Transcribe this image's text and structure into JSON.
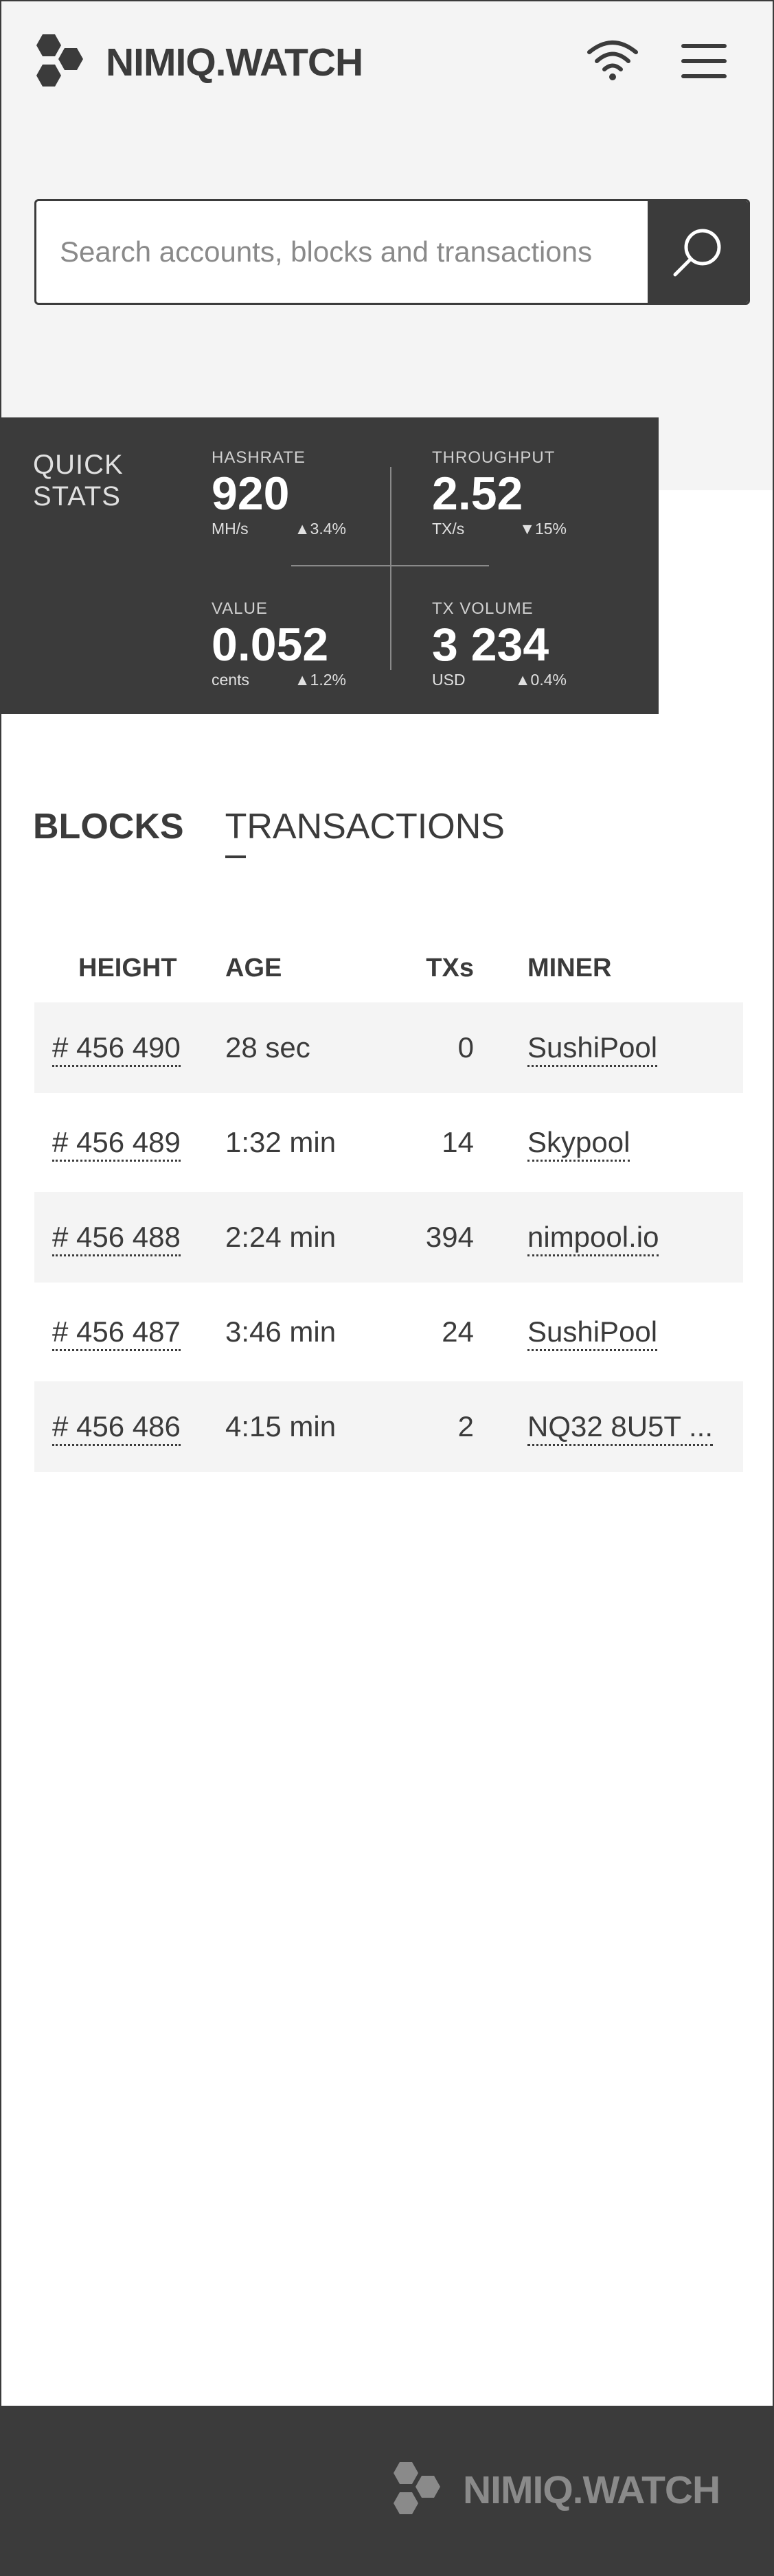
{
  "header": {
    "logo_text": "NIMIQ.WATCH"
  },
  "search": {
    "placeholder": "Search accounts, blocks and transactions"
  },
  "quick_stats": {
    "title": "QUICK\nSTATS",
    "hashrate": {
      "label": "HASHRATE",
      "value": "920",
      "unit": "MH/s",
      "change": "▲3.4%"
    },
    "throughput": {
      "label": "THROUGHPUT",
      "value": "2.52",
      "unit": "TX/s",
      "change": "▼15%"
    },
    "value": {
      "label": "VALUE",
      "value": "0.052",
      "unit": "cents",
      "change": "▲1.2%"
    },
    "tx_volume": {
      "label": "TX VOLUME",
      "value": "3 234",
      "unit": "USD",
      "change": "▲0.4%"
    }
  },
  "tabs": [
    {
      "label": "BLOCKS",
      "active": true
    },
    {
      "label": "TRANSACTIONS",
      "active": false
    }
  ],
  "table": {
    "headers": [
      "HEIGHT",
      "AGE",
      "TXs",
      "MINER"
    ],
    "rows": [
      {
        "height": "# 456 490",
        "age": "28 sec",
        "txs": "0",
        "miner": "SushiPool"
      },
      {
        "height": "# 456 489",
        "age": "1:32 min",
        "txs": "14",
        "miner": "Skypool"
      },
      {
        "height": "# 456 488",
        "age": "2:24 min",
        "txs": "394",
        "miner": "nimpool.io"
      },
      {
        "height": "# 456 487",
        "age": "3:46 min",
        "txs": "24",
        "miner": "SushiPool"
      },
      {
        "height": "# 456 486",
        "age": "4:15 min",
        "txs": "2",
        "miner": "NQ32 8U5T ..."
      }
    ]
  },
  "footer": {
    "logo_text": "NIMIQ.WATCH"
  },
  "colors": {
    "dark": "#3b3b3b",
    "light_bg": "#f4f4f4",
    "footer_logo": "#8a8a8a"
  }
}
